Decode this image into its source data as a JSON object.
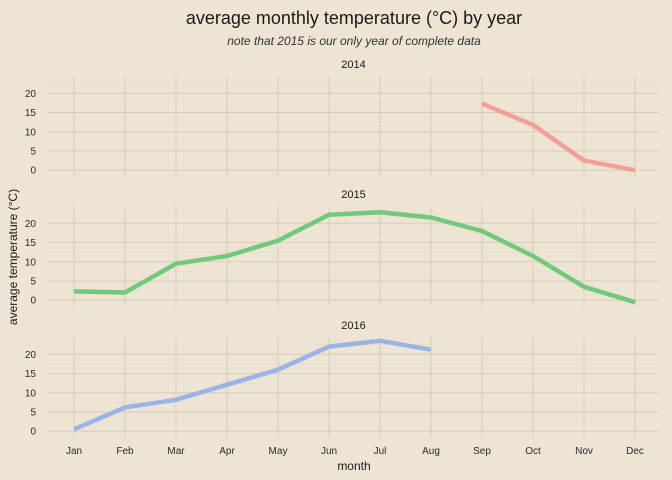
{
  "chart_data": {
    "type": "line",
    "title": "average monthly temperature (°C) by year",
    "subtitle": "note that 2015 is our only year of complete data",
    "xlabel": "month",
    "ylabel": "average temperature (°C)",
    "categories": [
      "Jan",
      "Feb",
      "Mar",
      "Apr",
      "May",
      "Jun",
      "Jul",
      "Aug",
      "Sep",
      "Oct",
      "Nov",
      "Dec"
    ],
    "y_ticks": [
      0,
      5,
      10,
      15,
      20
    ],
    "ylim": [
      -1.5,
      24.5
    ],
    "grid": true,
    "legend": "none",
    "facets": [
      {
        "name": "2014",
        "color": "#f2a097",
        "values": [
          null,
          null,
          null,
          null,
          null,
          null,
          null,
          null,
          17.3,
          11.8,
          2.5,
          0
        ]
      },
      {
        "name": "2015",
        "color": "#72c97c",
        "values": [
          2.3,
          2.0,
          9.5,
          11.5,
          15.5,
          22.2,
          22.9,
          21.5,
          18.0,
          11.5,
          3.5,
          -0.5
        ]
      },
      {
        "name": "2016",
        "color": "#9ab4e6",
        "values": [
          0.5,
          6.2,
          8.2,
          12.1,
          16.0,
          22.0,
          23.5,
          21.2,
          null,
          null,
          null,
          null
        ]
      }
    ]
  }
}
